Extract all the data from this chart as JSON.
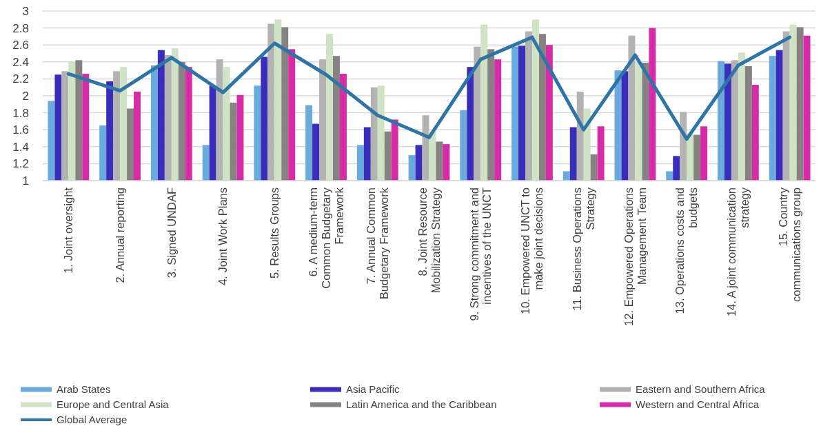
{
  "chart_data": {
    "type": "bar",
    "categories": [
      "1. Joint oversight",
      "2. Annual reporting",
      "3. Signed UNDAF",
      "4. Joint Work Plans",
      "5. Results Groups",
      "6. A medium-term\nCommon Budgetary\nFramework",
      "7. Annual Common\nBudgetary Framework",
      "8. Joint Resource\nMobilization Strategy",
      "9. Strong commitment and\nincentives of the UNCT",
      "10. Empowered UNCT to\nmake joint decisions",
      "11.  Business Operations\nStrategy",
      "12. Empowered Operations\nManagement Team",
      "13. Operations costs and\nbudgets",
      "14. A joint communication\nstrategy",
      "15. Country\ncommunications group"
    ],
    "series": [
      {
        "name": "Arab States",
        "color": "#6aaadc",
        "values": [
          1.94,
          1.65,
          2.36,
          1.42,
          2.12,
          1.89,
          1.42,
          1.3,
          1.83,
          2.58,
          1.11,
          2.3,
          1.11,
          2.41,
          2.47
        ]
      },
      {
        "name": "Asia Pacific",
        "color": "#3b2dbb",
        "values": [
          2.25,
          2.17,
          2.54,
          2.12,
          2.46,
          1.67,
          1.63,
          1.42,
          2.34,
          2.59,
          1.63,
          2.29,
          1.29,
          2.38,
          2.54
        ]
      },
      {
        "name": "Eastern and Southern Africa",
        "color": "#b3b3b3",
        "values": [
          2.29,
          2.29,
          2.48,
          2.43,
          2.85,
          2.43,
          2.1,
          1.77,
          2.58,
          2.76,
          2.05,
          2.71,
          1.81,
          2.42,
          2.76
        ]
      },
      {
        "name": "Europe and Central Asia",
        "color": "#cfe4c4",
        "values": [
          2.4,
          2.34,
          2.56,
          2.34,
          2.9,
          2.73,
          2.12,
          1.58,
          2.84,
          2.9,
          1.85,
          2.4,
          1.55,
          2.51,
          2.84
        ]
      },
      {
        "name": "Latin America and the Caribbean",
        "color": "#878282",
        "values": [
          2.42,
          1.85,
          2.4,
          1.92,
          2.81,
          2.47,
          1.58,
          1.46,
          2.55,
          2.73,
          1.31,
          2.39,
          1.54,
          2.35,
          2.81
        ]
      },
      {
        "name": "Western and Central Africa",
        "color": "#d62ca8",
        "values": [
          2.26,
          2.05,
          2.34,
          2.01,
          2.55,
          2.26,
          1.72,
          1.43,
          2.43,
          2.6,
          1.64,
          2.8,
          1.64,
          2.13,
          2.71
        ]
      },
      {
        "name": "Global Average",
        "type": "line",
        "color": "#2e75a6",
        "values": [
          2.26,
          2.06,
          2.45,
          2.04,
          2.62,
          2.25,
          1.77,
          1.51,
          2.43,
          2.69,
          1.6,
          2.48,
          1.49,
          2.36,
          2.69
        ]
      }
    ],
    "ylim": [
      1,
      3
    ],
    "yticks": [
      1,
      1.2,
      1.4,
      1.6,
      1.8,
      2,
      2.2,
      2.4,
      2.6,
      2.8,
      3
    ],
    "grid": "y",
    "legend": "bottom"
  }
}
